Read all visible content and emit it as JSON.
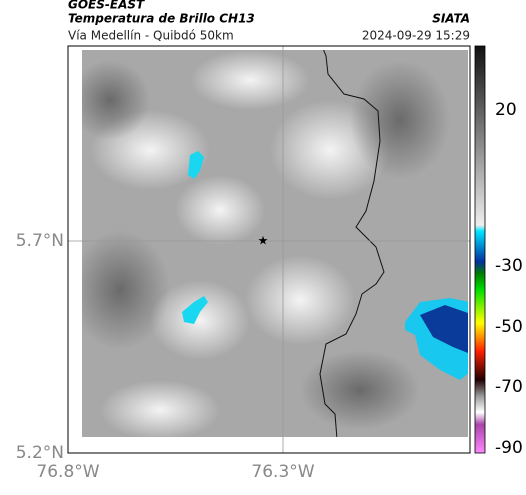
{
  "header": {
    "source": "GOES-EAST",
    "title": "Temperatura de Brillo CH13",
    "org": "SIATA",
    "subtitle": "Vía Medellín - Quibdó 50km",
    "timestamp": "2024-09-29 15:29"
  },
  "axes": {
    "y_labels": [
      "5.7°N",
      "5.2°N"
    ],
    "x_labels": [
      "76.8°W",
      "76.3°W"
    ]
  },
  "colorbar": {
    "labels": [
      "20",
      "-30",
      "-50",
      "-70",
      "-90"
    ]
  }
}
